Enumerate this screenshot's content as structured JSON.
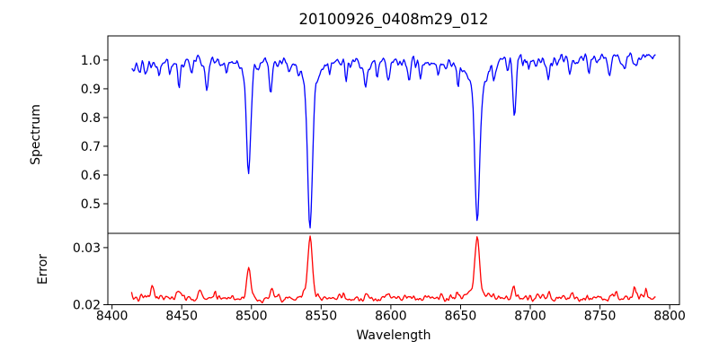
{
  "figure": {
    "background": "#ffffff",
    "spine_color": "#000000"
  },
  "chart_data": {
    "type": "line",
    "title": "20100926_0408m29_012",
    "legend": "none",
    "grid": false,
    "x": {
      "label": "Wavelength",
      "lim": [
        8397,
        8807
      ],
      "tick_values": [
        8400,
        8450,
        8500,
        8550,
        8600,
        8650,
        8700,
        8750,
        8800
      ],
      "ticks": [
        "8400",
        "8450",
        "8500",
        "8550",
        "8600",
        "8650",
        "8700",
        "8750",
        "8800"
      ],
      "data_start": 8414,
      "data_end": 8790,
      "sample_step": 0.7
    },
    "panels": [
      {
        "name": "spectrum",
        "ylabel": "Spectrum",
        "color": "#0000ff",
        "ylim": [
          0.397,
          1.084
        ],
        "yticks": [
          {
            "value": 1.0,
            "label": "1.0"
          },
          {
            "value": 0.9,
            "label": "0.9"
          },
          {
            "value": 0.8,
            "label": "0.8"
          },
          {
            "value": 0.7,
            "label": "0.7"
          },
          {
            "value": 0.6,
            "label": "0.6"
          },
          {
            "value": 0.5,
            "label": "0.5"
          }
        ],
        "main_absorption_lines": [
          8498,
          8542,
          8662
        ],
        "line_minima": {
          "8498": 0.61,
          "8542": 0.435,
          "8662": 0.435,
          "8688": 0.81
        },
        "model": {
          "base": {
            "level": 0.993,
            "left_knee": 8442,
            "left_slope": 0.0004,
            "right_knee": 8690,
            "right_slope": 0.00018
          },
          "noise": {
            "seed": 42,
            "sigma": 0.016
          },
          "features": [
            [
              8424,
              -0.05,
              1.0
            ],
            [
              8434,
              -0.048,
              0.9
            ],
            [
              8441,
              -0.035,
              0.8
            ],
            [
              8448,
              -0.08,
              0.9
            ],
            [
              8457,
              -0.042,
              0.8
            ],
            [
              8468,
              -0.085,
              1.0
            ],
            [
              8482,
              -0.048,
              0.8
            ],
            [
              8498,
              -0.33,
              1.4
            ],
            [
              8498,
              -0.052,
              4.5
            ],
            [
              8514,
              -0.105,
              1.0
            ],
            [
              8527,
              -0.045,
              0.9
            ],
            [
              8542,
              -0.47,
              1.7
            ],
            [
              8542,
              -0.088,
              6.0
            ],
            [
              8556,
              -0.04,
              0.8
            ],
            [
              8568,
              -0.052,
              0.9
            ],
            [
              8582,
              -0.075,
              1.0
            ],
            [
              8590,
              -0.04,
              0.8
            ],
            [
              8598,
              -0.075,
              1.0
            ],
            [
              8613,
              -0.065,
              0.9
            ],
            [
              8621,
              -0.052,
              0.8
            ],
            [
              8634,
              -0.042,
              0.8
            ],
            [
              8648,
              -0.07,
              0.9
            ],
            [
              8662,
              -0.47,
              1.7
            ],
            [
              8662,
              -0.088,
              6.0
            ],
            [
              8674,
              -0.052,
              1.0
            ],
            [
              8688.6,
              -0.19,
              1.1
            ],
            [
              8699,
              -0.038,
              0.8
            ],
            [
              8713,
              -0.05,
              0.9
            ],
            [
              8728,
              -0.046,
              0.9
            ],
            [
              8742,
              -0.04,
              0.8
            ],
            [
              8757,
              -0.05,
              0.9
            ],
            [
              8768,
              -0.042,
              0.8
            ],
            [
              8776,
              -0.046,
              0.9
            ]
          ]
        }
      },
      {
        "name": "error",
        "ylabel": "Error",
        "color": "#ff0000",
        "ylim": [
          0.02,
          0.0325
        ],
        "yticks": [
          {
            "value": 0.03,
            "label": "0.03"
          },
          {
            "value": 0.02,
            "label": "0.02"
          }
        ],
        "model": {
          "base": {
            "level": 0.0212
          },
          "noise": {
            "seed": 7,
            "sigma": 0.0005
          },
          "features": [
            [
              8429,
              0.0022,
              1.0
            ],
            [
              8448,
              0.0011,
              0.9
            ],
            [
              8464,
              0.0012,
              1.0
            ],
            [
              8474,
              0.0009,
              0.8
            ],
            [
              8498,
              0.0056,
              1.3
            ],
            [
              8515,
              0.0013,
              0.9
            ],
            [
              8542,
              0.0095,
              1.5
            ],
            [
              8542,
              0.0013,
              5.0
            ],
            [
              8582,
              0.0007,
              1.0
            ],
            [
              8598,
              0.0007,
              1.0
            ],
            [
              8648,
              0.0007,
              1.0
            ],
            [
              8662,
              0.0098,
              1.5
            ],
            [
              8662,
              0.0012,
              5.0
            ],
            [
              8688,
              0.0022,
              1.0
            ],
            [
              8713,
              0.0008,
              0.9
            ],
            [
              8730,
              0.0009,
              0.9
            ],
            [
              8748,
              0.0008,
              0.8
            ],
            [
              8762,
              0.0013,
              0.9
            ],
            [
              8775,
              0.0018,
              0.9
            ],
            [
              8783,
              0.0012,
              0.8
            ]
          ]
        }
      }
    ]
  }
}
